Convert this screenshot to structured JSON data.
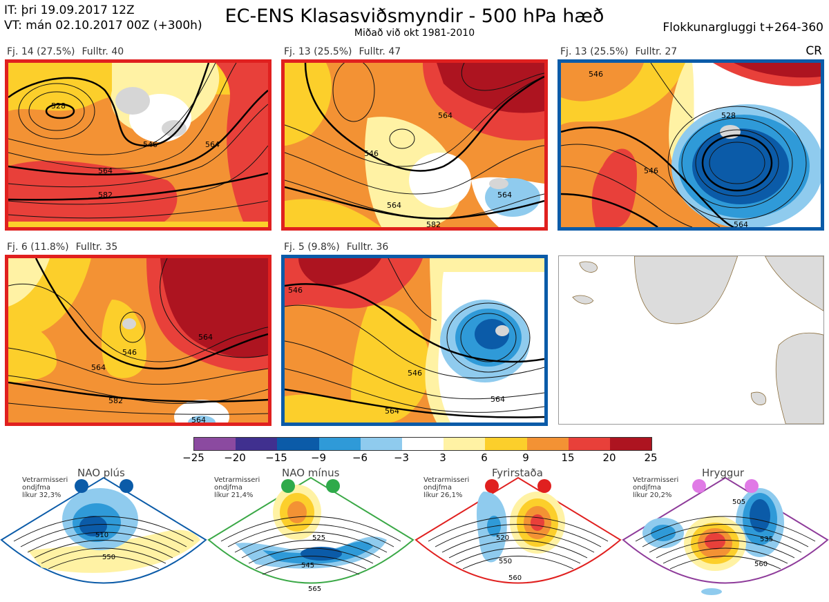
{
  "header": {
    "it": "IT: þri 19.09.2017 12Z",
    "vt": "VT: mán 02.10.2017 00Z  (+300h)",
    "title": "EC-ENS Klasasviðsmyndir - 500 hPa hæð",
    "subtitle": "Miðað við okt 1981-2010",
    "window": "Flokkunargluggi t+264-360"
  },
  "colors": {
    "red_frame": "#e0201f",
    "blue_frame": "#0b5ba8",
    "green_frame": "#3aa846",
    "purple_frame": "#8e3b9a"
  },
  "panels": [
    {
      "cluster": "Fj. 14 (27.5%)",
      "rep": "Fulltr. 40",
      "frame": "red",
      "labels": [
        "528",
        "546",
        "564",
        "582",
        "564"
      ]
    },
    {
      "cluster": "Fj. 13 (25.5%)",
      "rep": "Fulltr. 47",
      "frame": "red",
      "labels": [
        "546",
        "564",
        "564",
        "564",
        "582"
      ]
    },
    {
      "cluster": "Fj. 13 (25.5%)",
      "rep": "Fulltr. 27",
      "frame": "blue",
      "labels": [
        "528",
        "546",
        "546",
        "564"
      ]
    },
    {
      "cluster": "Fj. 6 (11.8%)",
      "rep": "Fulltr. 35",
      "frame": "red",
      "labels": [
        "546",
        "564",
        "564",
        "582",
        "564"
      ]
    },
    {
      "cluster": "Fj. 5 (9.8%)",
      "rep": "Fulltr. 36",
      "frame": "blue",
      "labels": [
        "546",
        "546",
        "564",
        "564"
      ]
    }
  ],
  "cr_label": "CR",
  "colorbar": {
    "colors": [
      "#8b4aa0",
      "#40308f",
      "#0b5ba8",
      "#2f9ad8",
      "#8fcbee",
      "#ffffff",
      "#fff2a4",
      "#fccf2b",
      "#f39234",
      "#e8403a",
      "#ad1420"
    ],
    "ticks": [
      "−25",
      "−20",
      "−15",
      "−9",
      "−6",
      "−3",
      "3",
      "6",
      "9",
      "15",
      "20",
      "25"
    ]
  },
  "regimes": [
    {
      "name": "NAO plús",
      "note1": "Vetrarmisseri",
      "note2": "ondjfma",
      "note3": "líkur 32,3%",
      "dot": "#0b5ba8",
      "frame": "#0b5ba8",
      "contours": [
        "510",
        "550"
      ]
    },
    {
      "name": "NAO mínus",
      "note1": "Vetrarmisseri",
      "note2": "ondjfma",
      "note3": "líkur 21,4%",
      "dot": "#2eaa4a",
      "frame": "#3aa846",
      "contours": [
        "525",
        "545",
        "565"
      ]
    },
    {
      "name": "Fyrirstaða",
      "note1": "Vetrarmisseri",
      "note2": "ondjfma",
      "note3": "líkur 26,1%",
      "dot": "#e0201f",
      "frame": "#e0201f",
      "contours": [
        "520",
        "550",
        "560"
      ]
    },
    {
      "name": "Hryggur",
      "note1": "Vetrarmisseri",
      "note2": "ondjfma",
      "note3": "líkur 20,2%",
      "dot": "#e07ae6",
      "frame": "#8e3b9a",
      "contours": [
        "505",
        "535",
        "560"
      ]
    }
  ]
}
